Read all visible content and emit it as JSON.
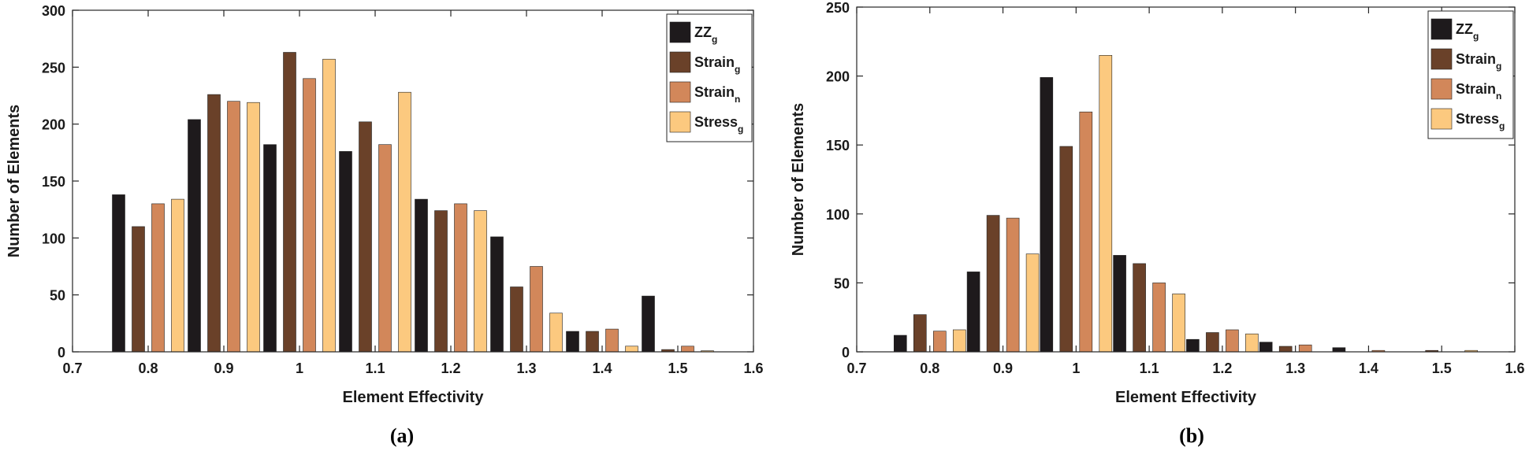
{
  "colors": [
    "#1e1a1c",
    "#6a4129",
    "#d2875a",
    "#fcc97f"
  ],
  "legend_location": "top-right",
  "chart_data": [
    {
      "type": "bar",
      "panel_label": "(a)",
      "xlabel": "Element Effectivity",
      "ylabel": "Number of Elements",
      "xlim": [
        0.7,
        1.6
      ],
      "ylim": [
        0,
        300
      ],
      "xticks": [
        "0.7",
        "0.8",
        "0.9",
        "1",
        "1.1",
        "1.2",
        "1.3",
        "1.4",
        "1.5",
        "1.6"
      ],
      "yticks": [
        "0",
        "50",
        "100",
        "150",
        "200",
        "250",
        "300"
      ],
      "categories": [
        0.8,
        0.9,
        1.0,
        1.1,
        1.2,
        1.3,
        1.4,
        1.5
      ],
      "series": [
        {
          "name": "ZZ",
          "sub": "g",
          "values": [
            138,
            204,
            182,
            176,
            134,
            101,
            18,
            49
          ]
        },
        {
          "name": "Strain",
          "sub": "g",
          "values": [
            110,
            226,
            263,
            202,
            124,
            57,
            18,
            2
          ]
        },
        {
          "name": "Strain",
          "sub": "n",
          "values": [
            130,
            220,
            240,
            182,
            130,
            75,
            20,
            5
          ]
        },
        {
          "name": "Stress",
          "sub": "g",
          "values": [
            134,
            219,
            257,
            228,
            124,
            34,
            5,
            1
          ]
        }
      ]
    },
    {
      "type": "bar",
      "panel_label": "(b)",
      "xlabel": "Element Effectivity",
      "ylabel": "Number of Elements",
      "xlim": [
        0.7,
        1.6
      ],
      "ylim": [
        0,
        250
      ],
      "xticks": [
        "0.7",
        "0.8",
        "0.9",
        "1",
        "1.1",
        "1.2",
        "1.3",
        "1.4",
        "1.5",
        "1.6"
      ],
      "yticks": [
        "0",
        "50",
        "100",
        "150",
        "200",
        "250"
      ],
      "categories": [
        0.8,
        0.9,
        1.0,
        1.1,
        1.2,
        1.3,
        1.4,
        1.5
      ],
      "series": [
        {
          "name": "ZZ",
          "sub": "g",
          "values": [
            12,
            58,
            199,
            70,
            9,
            7,
            3,
            0
          ]
        },
        {
          "name": "Strain",
          "sub": "g",
          "values": [
            27,
            99,
            149,
            64,
            14,
            4,
            0,
            1
          ]
        },
        {
          "name": "Strain",
          "sub": "n",
          "values": [
            15,
            97,
            174,
            50,
            16,
            5,
            1,
            0
          ]
        },
        {
          "name": "Stress",
          "sub": "g",
          "values": [
            16,
            71,
            215,
            42,
            13,
            0,
            0,
            1
          ]
        }
      ]
    }
  ]
}
